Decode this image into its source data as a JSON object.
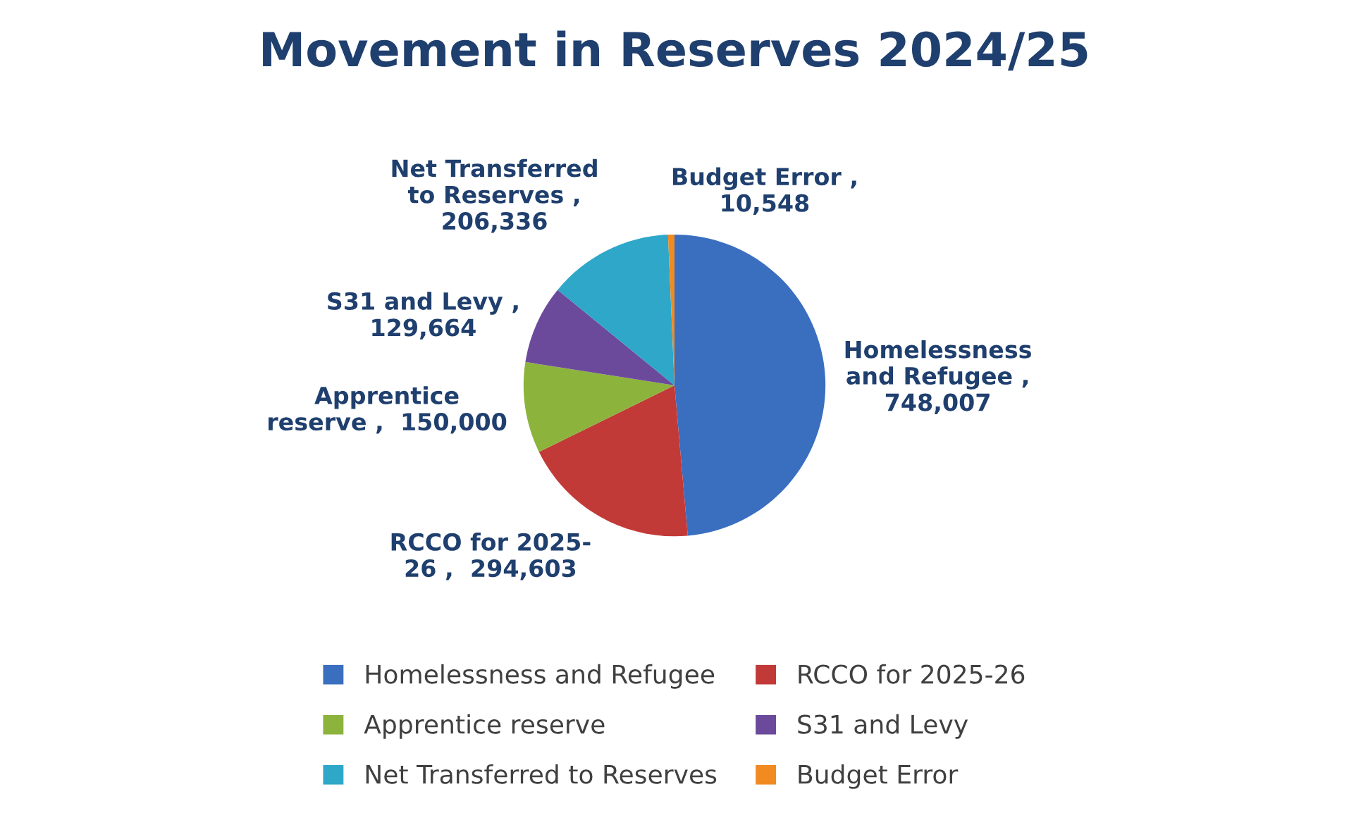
{
  "chart_data": {
    "type": "pie",
    "title": "Movement in Reserves 2024/25",
    "categories": [
      "Homelessness and Refugee",
      "RCCO for 2025-26",
      "Apprentice reserve",
      "S31 and Levy",
      "Net Transferred to Reserves",
      "Budget Error"
    ],
    "values": [
      748007,
      294603,
      150000,
      129664,
      206336,
      10548
    ],
    "colors": [
      "#3a6fc0",
      "#c23a38",
      "#8cb43c",
      "#6c4a9b",
      "#2ea7c9",
      "#f28a22"
    ],
    "value_labels": [
      "Homelessness\nand Refugee ,\n748,007",
      "RCCO for 2025-\n26 ,  294,603",
      "Apprentice\nreserve ,  150,000",
      "S31 and Levy ,\n129,664",
      "Net Transferred\nto Reserves ,\n206,336",
      "Budget Error ,\n10,548"
    ],
    "legend": "bottom"
  }
}
